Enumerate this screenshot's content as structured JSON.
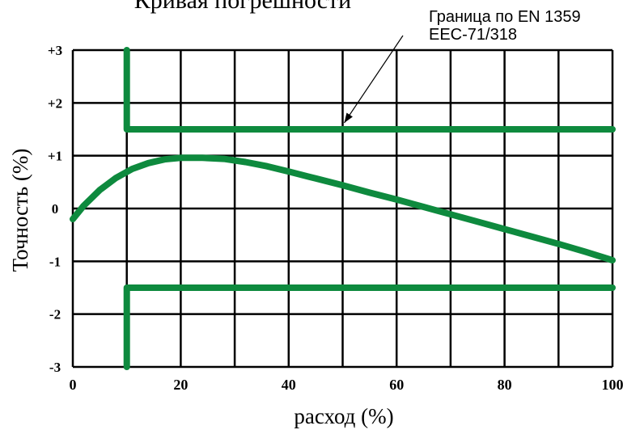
{
  "chart_data": {
    "type": "line",
    "title": "Кривая погрешности",
    "xlabel": "расход (%)",
    "ylabel": "Точность (%)",
    "xlim": [
      0,
      100
    ],
    "ylim": [
      -3,
      3
    ],
    "x_ticks": [
      0,
      20,
      40,
      60,
      80,
      100
    ],
    "x_tick_labels": [
      "0",
      "20",
      "40",
      "60",
      "80",
      "100"
    ],
    "y_ticks": [
      3,
      2,
      1,
      0,
      -1,
      -2,
      -3
    ],
    "y_tick_labels": [
      "+3",
      "+2",
      "+1",
      "0",
      "-1",
      "-2",
      "-3"
    ],
    "grid": true,
    "series": [
      {
        "role": "curve",
        "color": "#0e8a3e",
        "x": [
          0,
          2,
          5,
          8,
          11,
          14,
          17,
          20,
          24,
          28,
          32,
          36,
          40,
          45,
          50,
          55,
          60,
          65,
          70,
          75,
          80,
          85,
          90,
          95,
          100
        ],
        "y": [
          -0.2,
          0.05,
          0.35,
          0.58,
          0.75,
          0.86,
          0.93,
          0.96,
          0.96,
          0.94,
          0.88,
          0.8,
          0.7,
          0.57,
          0.44,
          0.3,
          0.17,
          0.03,
          -0.11,
          -0.25,
          -0.39,
          -0.53,
          -0.67,
          -0.82,
          -0.98
        ]
      },
      {
        "role": "upper-limit",
        "color": "#0e8a3e",
        "x": [
          10,
          10,
          100
        ],
        "y": [
          3,
          1.5,
          1.5
        ]
      },
      {
        "role": "lower-limit",
        "color": "#0e8a3e",
        "x": [
          10,
          10,
          100
        ],
        "y": [
          -3,
          -1.5,
          -1.5
        ]
      }
    ],
    "annotations": [
      {
        "text_lines": [
          "Граница по EN 1359",
          "EEC-71/318"
        ],
        "points_to": {
          "x": 50,
          "y": 1.5
        }
      }
    ]
  }
}
